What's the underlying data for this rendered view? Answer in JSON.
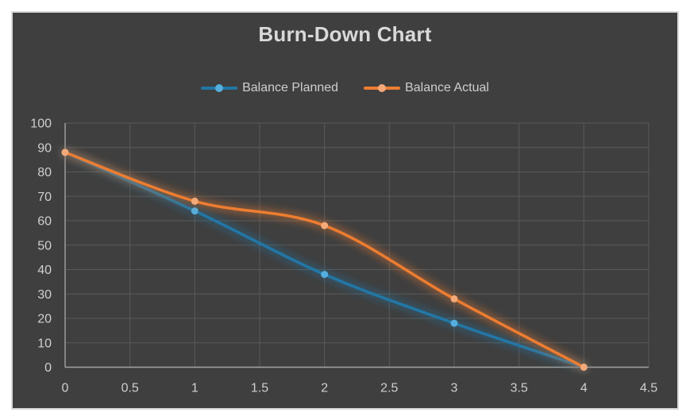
{
  "page": {
    "background": "#FFFFFF"
  },
  "chart": {
    "frame_background": "#3F3F3F",
    "frame_border_color": "#D9D9D9",
    "grid_color": "#5A5A5A",
    "axis_color": "#A3A3A3",
    "tick_text_color": "#CFCFCF",
    "title_color": "#D9D9D9"
  },
  "chart_data": {
    "type": "line",
    "title": "Burn-Down Chart",
    "x": [
      0,
      1,
      2,
      3,
      4
    ],
    "series": [
      {
        "name": "Balance Planned",
        "values": [
          88,
          64,
          38,
          18,
          0
        ],
        "line_color": "#2277A6",
        "marker_color": "#55AEDD"
      },
      {
        "name": "Balance Actual",
        "values": [
          88,
          68,
          58,
          28,
          0
        ],
        "line_color": "#ED7D31",
        "marker_color": "#F4A978"
      }
    ],
    "xlim": [
      0,
      4.5
    ],
    "ylim": [
      0,
      100
    ],
    "x_tick_labels": [
      "0",
      "0.5",
      "1",
      "1.5",
      "2",
      "2.5",
      "3",
      "3.5",
      "4",
      "4.5"
    ],
    "y_tick_labels": [
      "0",
      "10",
      "20",
      "30",
      "40",
      "50",
      "60",
      "70",
      "80",
      "90",
      "100"
    ],
    "grid": true,
    "smoothed": true,
    "legend_position": "top",
    "glow_effect": true
  }
}
